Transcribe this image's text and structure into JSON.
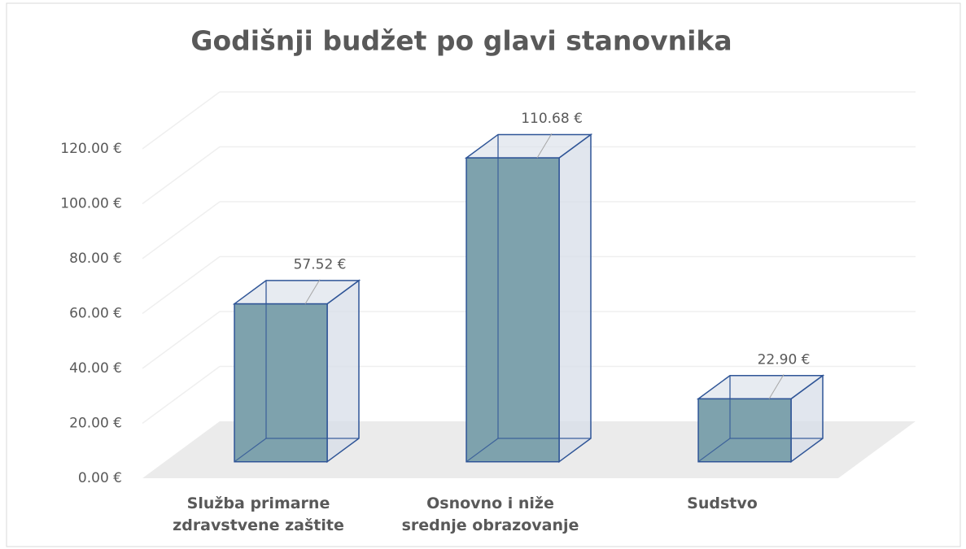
{
  "chart_data": {
    "type": "bar3d",
    "title": "Godišnji budžet po glavi stanovnika",
    "categories": [
      "Služba primarne zdravstvene zaštite",
      "Osnovno i niže srednje obrazovanje",
      "Sudstvo"
    ],
    "values": [
      57.52,
      110.68,
      22.9
    ],
    "value_labels": [
      "57.52 €",
      "110.68 €",
      "22.90 €"
    ],
    "color": "#7a9faa",
    "ylim": [
      0,
      120
    ],
    "yticks": [
      {
        "value": 0,
        "label": "0.00 €"
      },
      {
        "value": 20,
        "label": "20.00 €"
      },
      {
        "value": 40,
        "label": "40.00 €"
      },
      {
        "value": 60,
        "label": "60.00 €"
      },
      {
        "value": 80,
        "label": "80.00 €"
      },
      {
        "value": 100,
        "label": "100.00 €"
      },
      {
        "value": 120,
        "label": "120.00 €"
      }
    ],
    "grid": true
  }
}
